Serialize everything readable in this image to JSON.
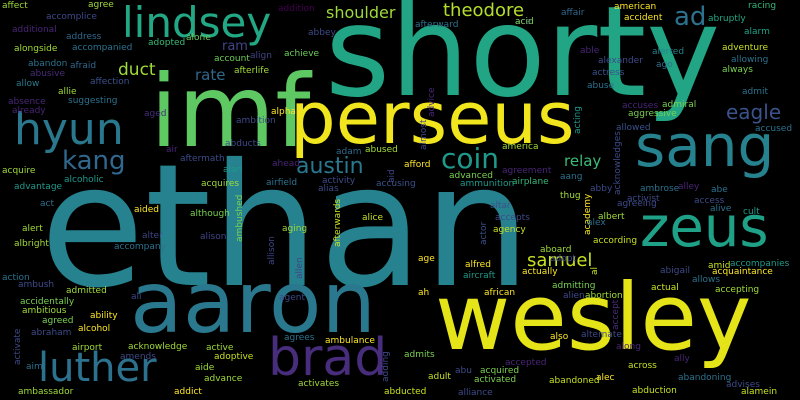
{
  "title": "Word cloud",
  "words": [
    {
      "text": "ethan",
      "color": "#26828e"
    },
    {
      "text": "shorty",
      "color": "#21a585"
    },
    {
      "text": "imf",
      "color": "#5ec962"
    },
    {
      "text": "wesley",
      "color": "#e5e419"
    },
    {
      "text": "aaron",
      "color": "#2a788e"
    },
    {
      "text": "perseus",
      "color": "#f1e51d"
    },
    {
      "text": "sang",
      "color": "#26828e"
    },
    {
      "text": "hyun",
      "color": "#2a788e"
    },
    {
      "text": "zeus",
      "color": "#1fa187"
    },
    {
      "text": "lindsey",
      "color": "#22a884"
    },
    {
      "text": "brad",
      "color": "#472d7b"
    },
    {
      "text": "luther",
      "color": "#2c728e"
    },
    {
      "text": "kang",
      "color": "#31688e"
    },
    {
      "text": "coin",
      "color": "#1f9a8a"
    },
    {
      "text": "austin",
      "color": "#2a788e"
    },
    {
      "text": "samuel",
      "color": "#c8e020"
    },
    {
      "text": "theodore",
      "color": "#b5de2b"
    },
    {
      "text": "ad",
      "color": "#2c728e"
    },
    {
      "text": "eagle",
      "color": "#3b528b"
    },
    {
      "text": "duct",
      "color": "#a0da39"
    },
    {
      "text": "rate",
      "color": "#31688e"
    },
    {
      "text": "shoulder",
      "color": "#9fda3a"
    },
    {
      "text": "relay",
      "color": "#3bbb75"
    },
    {
      "text": "ram",
      "color": "#414487"
    },
    {
      "text": "affect",
      "color": "#9fda3a"
    },
    {
      "text": "accomplice",
      "color": "#3e4a89"
    },
    {
      "text": "agree",
      "color": "#a0da39"
    },
    {
      "text": "additional",
      "color": "#482576"
    },
    {
      "text": "address",
      "color": "#31688e"
    },
    {
      "text": "alongside",
      "color": "#a0da39"
    },
    {
      "text": "accompanied",
      "color": "#2c728e"
    },
    {
      "text": "adopted",
      "color": "#3bbb75"
    },
    {
      "text": "alone",
      "color": "#6ccd5a"
    },
    {
      "text": "addition",
      "color": "#440154"
    },
    {
      "text": "abbey",
      "color": "#3e4a89"
    },
    {
      "text": "afterward",
      "color": "#2c728e"
    },
    {
      "text": "ace",
      "color": "#3e4a89"
    },
    {
      "text": "affair",
      "color": "#31688e"
    },
    {
      "text": "acid",
      "color": "#7ad151"
    },
    {
      "text": "american",
      "color": "#fde725"
    },
    {
      "text": "accident",
      "color": "#fde725"
    },
    {
      "text": "abruptly",
      "color": "#22a884"
    },
    {
      "text": "racing",
      "color": "#35b779"
    },
    {
      "text": "alarm",
      "color": "#1fa187"
    },
    {
      "text": "abandon",
      "color": "#2c728e"
    },
    {
      "text": "afraid",
      "color": "#31688e"
    },
    {
      "text": "abusive",
      "color": "#472d7b"
    },
    {
      "text": "affection",
      "color": "#3b528b"
    },
    {
      "text": "allow",
      "color": "#2a788e"
    },
    {
      "text": "allie",
      "color": "#a0da39"
    },
    {
      "text": "account",
      "color": "#6ccd5a"
    },
    {
      "text": "align",
      "color": "#414487"
    },
    {
      "text": "achieve",
      "color": "#6ccd5a"
    },
    {
      "text": "afterlife",
      "color": "#a0da39"
    },
    {
      "text": "able",
      "color": "#482576"
    },
    {
      "text": "alexander",
      "color": "#3e4a89"
    },
    {
      "text": "alerted",
      "color": "#26828e"
    },
    {
      "text": "ago",
      "color": "#2c728e"
    },
    {
      "text": "adventure",
      "color": "#c8e020"
    },
    {
      "text": "allowing",
      "color": "#2c728e"
    },
    {
      "text": "always",
      "color": "#7ad151"
    },
    {
      "text": "actress",
      "color": "#3b528b"
    },
    {
      "text": "abuse",
      "color": "#2c728e"
    },
    {
      "text": "absence",
      "color": "#482878"
    },
    {
      "text": "already",
      "color": "#482576"
    },
    {
      "text": "suggesting",
      "color": "#2c728e"
    },
    {
      "text": "aged",
      "color": "#472d7b"
    },
    {
      "text": "alpha",
      "color": "#fde725"
    },
    {
      "text": "ambition",
      "color": "#3e4a89"
    },
    {
      "text": "advice",
      "color": "#482878"
    },
    {
      "text": "almost",
      "color": "#414487"
    },
    {
      "text": "acting",
      "color": "#1f9a8a"
    },
    {
      "text": "accuses",
      "color": "#482576"
    },
    {
      "text": "admiral",
      "color": "#7ad151"
    },
    {
      "text": "aggressive",
      "color": "#7ad151"
    },
    {
      "text": "allowed",
      "color": "#3b528b"
    },
    {
      "text": "admit",
      "color": "#2c728e"
    },
    {
      "text": "accused",
      "color": "#2c728e"
    },
    {
      "text": "abducts",
      "color": "#3e4a89"
    },
    {
      "text": "air",
      "color": "#482576"
    },
    {
      "text": "aftermath",
      "color": "#3e4a89"
    },
    {
      "text": "adam",
      "color": "#31688e"
    },
    {
      "text": "abused",
      "color": "#a0da39"
    },
    {
      "text": "america",
      "color": "#a0da39"
    },
    {
      "text": "acknowledges",
      "color": "#3e4a89"
    },
    {
      "text": "acquire",
      "color": "#a0da39"
    },
    {
      "text": "alcoholic",
      "color": "#1f9a8a"
    },
    {
      "text": "alan",
      "color": "#1f9a8a"
    },
    {
      "text": "ahead",
      "color": "#482576"
    },
    {
      "text": "aid",
      "color": "#414487"
    },
    {
      "text": "afford",
      "color": "#fde725"
    },
    {
      "text": "agreement",
      "color": "#482576"
    },
    {
      "text": "aang",
      "color": "#2c728e"
    },
    {
      "text": "advantage",
      "color": "#1f9a8a"
    },
    {
      "text": "acquires",
      "color": "#a0da39"
    },
    {
      "text": "airfield",
      "color": "#2c728e"
    },
    {
      "text": "activity",
      "color": "#3e4a89"
    },
    {
      "text": "alias",
      "color": "#3e4a89"
    },
    {
      "text": "accusing",
      "color": "#3b528b"
    },
    {
      "text": "advanced",
      "color": "#7ad151"
    },
    {
      "text": "ammunition",
      "color": "#1f9a8a"
    },
    {
      "text": "airplane",
      "color": "#35b779"
    },
    {
      "text": "abby",
      "color": "#3e4a89"
    },
    {
      "text": "ambrose",
      "color": "#2c728e"
    },
    {
      "text": "alley",
      "color": "#482576"
    },
    {
      "text": "abe",
      "color": "#2c728e"
    },
    {
      "text": "cult",
      "color": "#1f9a8a"
    },
    {
      "text": "act",
      "color": "#2c728e"
    },
    {
      "text": "aided",
      "color": "#fde725"
    },
    {
      "text": "although",
      "color": "#7ad151"
    },
    {
      "text": "ambushed",
      "color": "#7ad151"
    },
    {
      "text": "alter",
      "color": "#414487"
    },
    {
      "text": "alison",
      "color": "#414487"
    },
    {
      "text": "alice",
      "color": "#c8e020"
    },
    {
      "text": "altar",
      "color": "#3b528b"
    },
    {
      "text": "accepts",
      "color": "#3e4a89"
    },
    {
      "text": "agency",
      "color": "#c8e020"
    },
    {
      "text": "thug",
      "color": "#a0da39"
    },
    {
      "text": "albert",
      "color": "#a0da39"
    },
    {
      "text": "academy",
      "color": "#fde725"
    },
    {
      "text": "agreeing",
      "color": "#3e4a89"
    },
    {
      "text": "activist",
      "color": "#3e4a89"
    },
    {
      "text": "access",
      "color": "#3e4a89"
    },
    {
      "text": "alive",
      "color": "#2c728e"
    },
    {
      "text": "alert",
      "color": "#a0da39"
    },
    {
      "text": "albright",
      "color": "#a0da39"
    },
    {
      "text": "accompany",
      "color": "#2c728e"
    },
    {
      "text": "aging",
      "color": "#a0da39"
    },
    {
      "text": "allison",
      "color": "#414487"
    },
    {
      "text": "allen",
      "color": "#414487"
    },
    {
      "text": "afterwards",
      "color": "#c8e020"
    },
    {
      "text": "actor",
      "color": "#3b528b"
    },
    {
      "text": "aboard",
      "color": "#a0da39"
    },
    {
      "text": "according",
      "color": "#c8e020"
    },
    {
      "text": "alex",
      "color": "#2c728e"
    },
    {
      "text": "age",
      "color": "#fde725"
    },
    {
      "text": "alfred",
      "color": "#fde725"
    },
    {
      "text": "adopt",
      "color": "#3e4a89"
    },
    {
      "text": "al",
      "color": "#c8e020"
    },
    {
      "text": "abigail",
      "color": "#3e4a89"
    },
    {
      "text": "amid",
      "color": "#c8e020"
    },
    {
      "text": "accompanies",
      "color": "#1f9a8a"
    },
    {
      "text": "acquaintance",
      "color": "#fde725"
    },
    {
      "text": "allows",
      "color": "#2c728e"
    },
    {
      "text": "action",
      "color": "#2c728e"
    },
    {
      "text": "ambush",
      "color": "#3e4a89"
    },
    {
      "text": "admitted",
      "color": "#a0da39"
    },
    {
      "text": "aircraft",
      "color": "#1f9a8a"
    },
    {
      "text": "actually",
      "color": "#fde725"
    },
    {
      "text": "admitting",
      "color": "#7ad151"
    },
    {
      "text": "actual",
      "color": "#c8e020"
    },
    {
      "text": "accepting",
      "color": "#a0da39"
    },
    {
      "text": "accidentally",
      "color": "#7ad151"
    },
    {
      "text": "ali",
      "color": "#3e4a89"
    },
    {
      "text": "agent",
      "color": "#3e4a89"
    },
    {
      "text": "ah",
      "color": "#fde725"
    },
    {
      "text": "african",
      "color": "#fde725"
    },
    {
      "text": "alien",
      "color": "#3e4a89"
    },
    {
      "text": "abortion",
      "color": "#a0da39"
    },
    {
      "text": "ambitious",
      "color": "#a0da39"
    },
    {
      "text": "agreed",
      "color": "#7ad151"
    },
    {
      "text": "ability",
      "color": "#fde725"
    },
    {
      "text": "accept",
      "color": "#472d7b"
    },
    {
      "text": "abraham",
      "color": "#3e4a89"
    },
    {
      "text": "alcohol",
      "color": "#fde725"
    },
    {
      "text": "activate",
      "color": "#3e4a89"
    },
    {
      "text": "airport",
      "color": "#a0da39"
    },
    {
      "text": "acknowledge",
      "color": "#a0da39"
    },
    {
      "text": "agrees",
      "color": "#2c728e"
    },
    {
      "text": "ambulance",
      "color": "#fde725"
    },
    {
      "text": "also",
      "color": "#fde725"
    },
    {
      "text": "active",
      "color": "#a0da39"
    },
    {
      "text": "amends",
      "color": "#3e4a89"
    },
    {
      "text": "adoptive",
      "color": "#c8e020"
    },
    {
      "text": "admits",
      "color": "#7ad151"
    },
    {
      "text": "alternate",
      "color": "#3e4a89"
    },
    {
      "text": "along",
      "color": "#482576"
    },
    {
      "text": "ally",
      "color": "#482576"
    },
    {
      "text": "aim",
      "color": "#2c728e"
    },
    {
      "text": "aide",
      "color": "#a0da39"
    },
    {
      "text": "accepted",
      "color": "#482576"
    },
    {
      "text": "advance",
      "color": "#a0da39"
    },
    {
      "text": "activates",
      "color": "#a0da39"
    },
    {
      "text": "adding",
      "color": "#3e4a89"
    },
    {
      "text": "abu",
      "color": "#3e4a89"
    },
    {
      "text": "acquired",
      "color": "#7ad151"
    },
    {
      "text": "activated",
      "color": "#7ad151"
    },
    {
      "text": "adult",
      "color": "#c8e020"
    },
    {
      "text": "alec",
      "color": "#fde725"
    },
    {
      "text": "across",
      "color": "#c8e020"
    },
    {
      "text": "abandoning",
      "color": "#2c728e"
    },
    {
      "text": "advises",
      "color": "#3e4a89"
    },
    {
      "text": "alamein",
      "color": "#c8e020"
    },
    {
      "text": "ambassador",
      "color": "#a0da39"
    },
    {
      "text": "addict",
      "color": "#fde725"
    },
    {
      "text": "abducted",
      "color": "#c8e020"
    },
    {
      "text": "alliance",
      "color": "#3e4a89"
    },
    {
      "text": "abandoned",
      "color": "#c8e020"
    },
    {
      "text": "abduction",
      "color": "#c8e020"
    }
  ]
}
